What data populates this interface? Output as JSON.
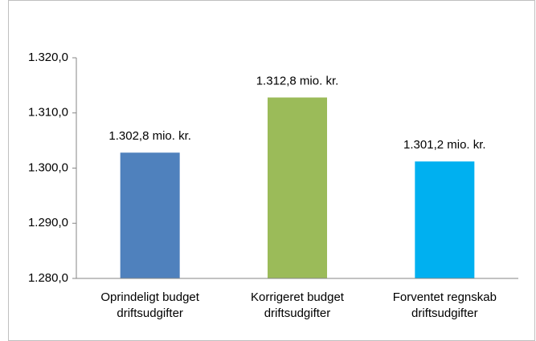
{
  "chart_data": {
    "type": "bar",
    "categories": [
      "Oprindeligt budget driftsudgifter",
      "Korrigeret budget driftsudgifter",
      "Forventet regnskab driftsudgifter"
    ],
    "values": [
      1302.8,
      1312.8,
      1301.2
    ],
    "value_labels": [
      "1.302,8 mio. kr.",
      "1.312,8 mio. kr.",
      "1.301,2 mio. kr."
    ],
    "colors": [
      "#4f81bd",
      "#9bbb59",
      "#00b0f0"
    ],
    "ylim": [
      1280,
      1320
    ],
    "yticks": [
      {
        "value": 1280,
        "label": "1.280,0"
      },
      {
        "value": 1290,
        "label": "1.290,0"
      },
      {
        "value": 1300,
        "label": "1.300,0"
      },
      {
        "value": 1310,
        "label": "1.310,0"
      },
      {
        "value": 1320,
        "label": "1.320,0"
      }
    ],
    "grid": false
  }
}
